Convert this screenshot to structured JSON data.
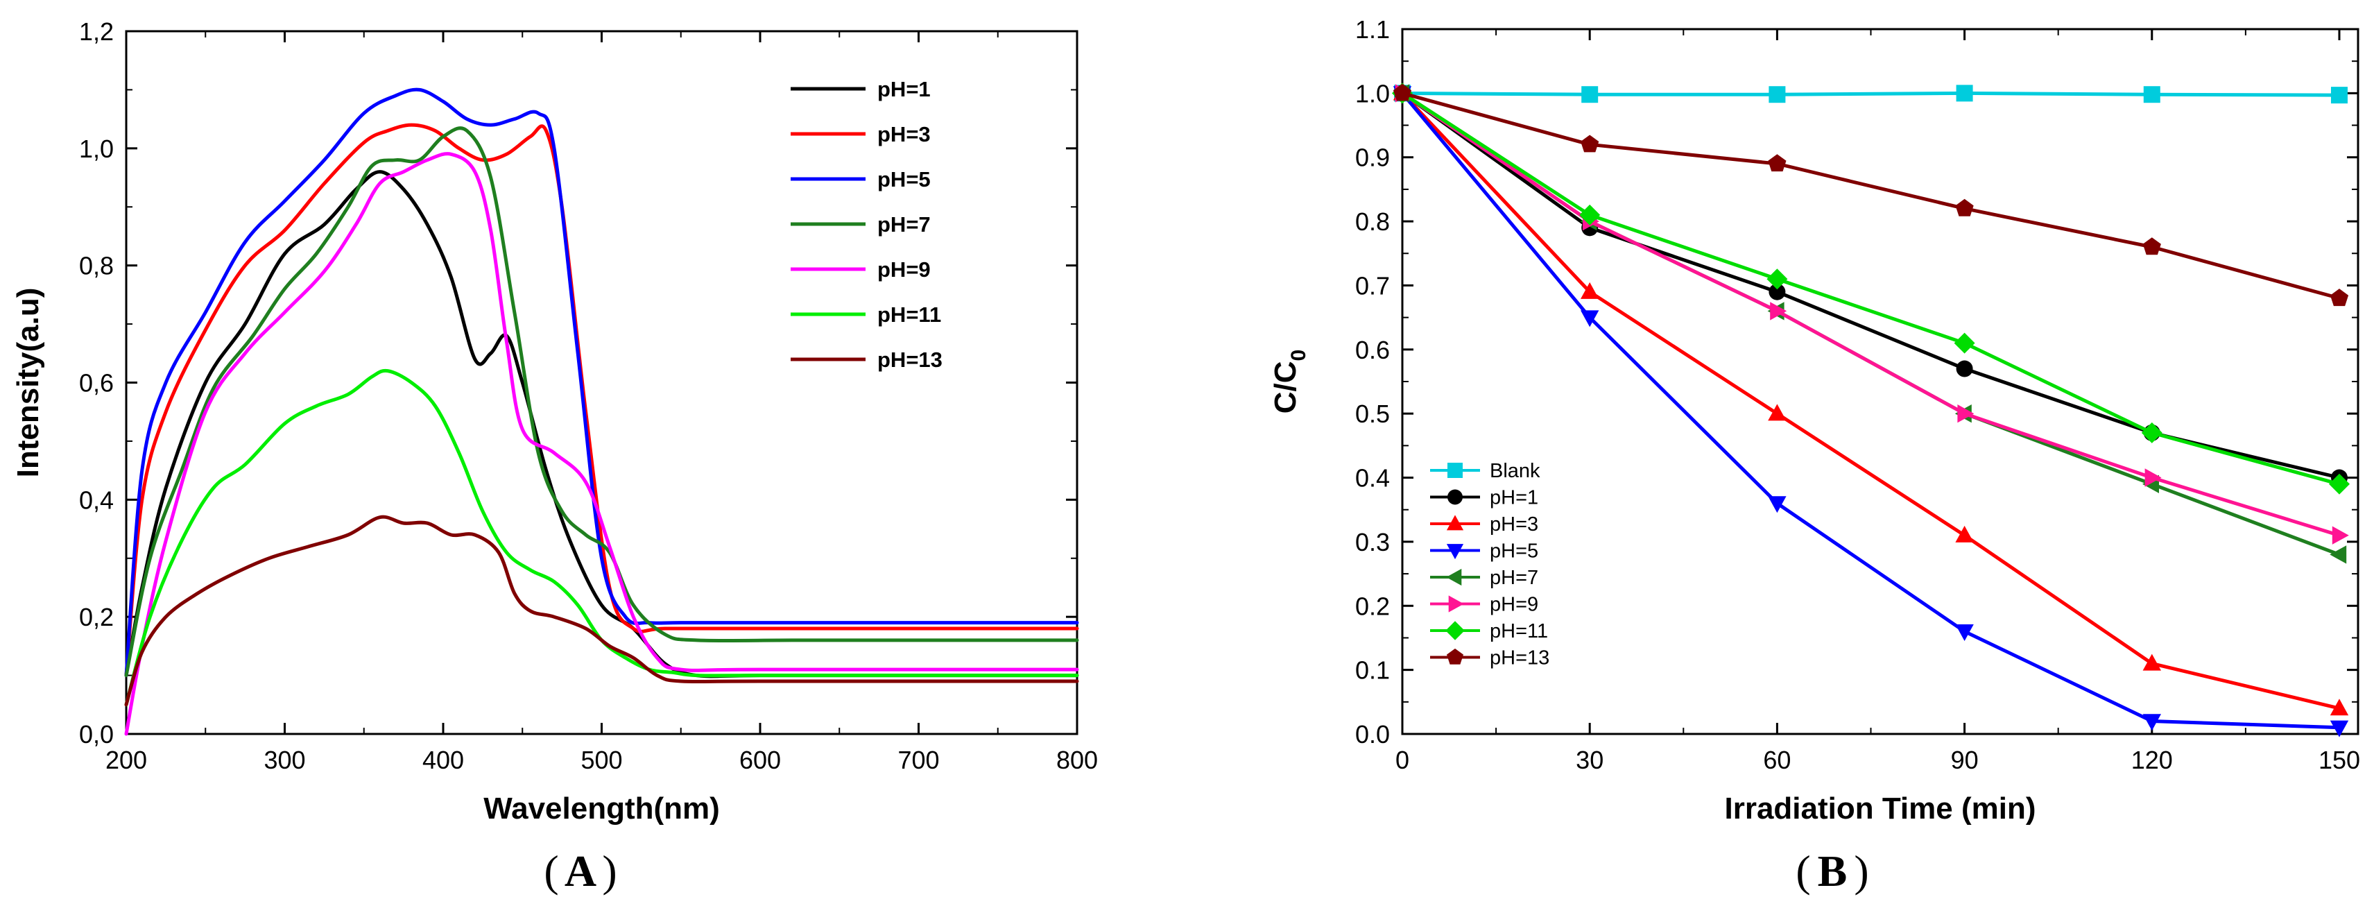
{
  "chart_data": [
    {
      "type": "line",
      "panel_label": "A",
      "xlabel": "Wavelength(nm)",
      "ylabel": "Intensity(a.u)",
      "xlim": [
        200,
        800
      ],
      "ylim": [
        0,
        1.2
      ],
      "xticks": [
        200,
        300,
        400,
        500,
        600,
        700,
        800
      ],
      "xtick_labels": [
        "200",
        "300",
        "400",
        "500",
        "600",
        "700",
        "800"
      ],
      "yticks": [
        0,
        0.2,
        0.4,
        0.6,
        0.8,
        1.0,
        1.2
      ],
      "ytick_labels": [
        "0,0",
        "0,2",
        "0,4",
        "0,6",
        "0,8",
        "1,0",
        "1,2"
      ],
      "legend_position": "top-right",
      "series": [
        {
          "name": "pH=1",
          "color": "#000000",
          "x": [
            200,
            210,
            225,
            250,
            275,
            300,
            325,
            345,
            360,
            375,
            390,
            405,
            420,
            430,
            440,
            450,
            465,
            480,
            500,
            520,
            540,
            560,
            600,
            700,
            800
          ],
          "y": [
            0.1,
            0.25,
            0.42,
            0.6,
            0.7,
            0.82,
            0.87,
            0.93,
            0.96,
            0.93,
            0.87,
            0.78,
            0.64,
            0.65,
            0.68,
            0.6,
            0.45,
            0.33,
            0.22,
            0.18,
            0.12,
            0.1,
            0.1,
            0.1,
            0.1
          ]
        },
        {
          "name": "pH=3",
          "color": "#ff0000",
          "x": [
            200,
            210,
            225,
            250,
            275,
            300,
            325,
            350,
            365,
            380,
            395,
            410,
            425,
            440,
            455,
            465,
            475,
            490,
            505,
            520,
            540,
            600,
            680,
            700,
            800
          ],
          "y": [
            0.1,
            0.4,
            0.55,
            0.69,
            0.8,
            0.86,
            0.94,
            1.01,
            1.03,
            1.04,
            1.03,
            1.0,
            0.98,
            0.99,
            1.02,
            1.03,
            0.9,
            0.55,
            0.25,
            0.18,
            0.18,
            0.18,
            0.18,
            0.18,
            0.18
          ]
        },
        {
          "name": "pH=5",
          "color": "#0000ff",
          "x": [
            200,
            210,
            225,
            250,
            275,
            300,
            325,
            350,
            370,
            385,
            400,
            415,
            430,
            445,
            460,
            470,
            485,
            500,
            515,
            530,
            550,
            600,
            700,
            800
          ],
          "y": [
            0.1,
            0.45,
            0.6,
            0.72,
            0.84,
            0.91,
            0.98,
            1.06,
            1.09,
            1.1,
            1.08,
            1.05,
            1.04,
            1.05,
            1.06,
            1.0,
            0.65,
            0.3,
            0.2,
            0.19,
            0.19,
            0.19,
            0.19,
            0.19
          ]
        },
        {
          "name": "pH=7",
          "color": "#1f7f1f",
          "x": [
            200,
            215,
            235,
            255,
            280,
            300,
            320,
            340,
            355,
            370,
            385,
            400,
            415,
            430,
            445,
            460,
            475,
            490,
            505,
            520,
            540,
            560,
            620,
            680,
            800
          ],
          "y": [
            0.1,
            0.3,
            0.45,
            0.59,
            0.68,
            0.76,
            0.82,
            0.9,
            0.97,
            0.98,
            0.98,
            1.02,
            1.03,
            0.95,
            0.72,
            0.48,
            0.38,
            0.34,
            0.31,
            0.22,
            0.17,
            0.16,
            0.16,
            0.16,
            0.16
          ]
        },
        {
          "name": "pH=9",
          "color": "#ff00ff",
          "x": [
            200,
            210,
            225,
            250,
            275,
            300,
            325,
            345,
            360,
            375,
            390,
            405,
            420,
            430,
            440,
            450,
            470,
            490,
            505,
            520,
            535,
            550,
            600,
            800
          ],
          "y": [
            0.0,
            0.15,
            0.33,
            0.55,
            0.65,
            0.72,
            0.79,
            0.87,
            0.94,
            0.96,
            0.98,
            0.99,
            0.96,
            0.86,
            0.67,
            0.52,
            0.48,
            0.43,
            0.32,
            0.2,
            0.13,
            0.11,
            0.11,
            0.11
          ]
        },
        {
          "name": "pH=11",
          "color": "#00ee00",
          "x": [
            200,
            215,
            235,
            255,
            275,
            300,
            320,
            340,
            355,
            365,
            380,
            395,
            410,
            425,
            440,
            455,
            470,
            485,
            500,
            515,
            530,
            545,
            560,
            600,
            800
          ],
          "y": [
            0.05,
            0.2,
            0.33,
            0.42,
            0.46,
            0.53,
            0.56,
            0.58,
            0.61,
            0.62,
            0.6,
            0.56,
            0.48,
            0.38,
            0.31,
            0.28,
            0.26,
            0.22,
            0.16,
            0.13,
            0.11,
            0.105,
            0.1,
            0.1,
            0.1
          ]
        },
        {
          "name": "pH=13",
          "color": "#800000",
          "x": [
            200,
            210,
            225,
            245,
            265,
            290,
            315,
            340,
            360,
            375,
            390,
            405,
            420,
            435,
            445,
            455,
            470,
            490,
            505,
            520,
            535,
            550,
            600,
            800
          ],
          "y": [
            0.05,
            0.14,
            0.2,
            0.24,
            0.27,
            0.3,
            0.32,
            0.34,
            0.37,
            0.36,
            0.36,
            0.34,
            0.34,
            0.31,
            0.24,
            0.21,
            0.2,
            0.18,
            0.15,
            0.13,
            0.1,
            0.09,
            0.09,
            0.09
          ]
        }
      ]
    },
    {
      "type": "line",
      "panel_label": "B",
      "xlabel": "Irradiation Time (min)",
      "ylabel": "C/C",
      "ylabel_subscript": "0",
      "xlim": [
        0,
        153
      ],
      "ylim": [
        0,
        1.1
      ],
      "xticks": [
        0,
        30,
        60,
        90,
        120,
        150
      ],
      "xtick_labels": [
        "0",
        "30",
        "60",
        "90",
        "120",
        "150"
      ],
      "yticks": [
        0,
        0.1,
        0.2,
        0.3,
        0.4,
        0.5,
        0.6,
        0.7,
        0.8,
        0.9,
        1.0,
        1.1
      ],
      "ytick_labels": [
        "0.0",
        "0.1",
        "0.2",
        "0.3",
        "0.4",
        "0.5",
        "0.6",
        "0.7",
        "0.8",
        "0.9",
        "1.0",
        "1.1"
      ],
      "legend_position": "bottom-left",
      "x": [
        0,
        30,
        60,
        90,
        120,
        150
      ],
      "series": [
        {
          "name": "Blank",
          "color": "#00ccdd",
          "marker": "square",
          "values": [
            1.0,
            0.998,
            0.998,
            1.0,
            0.998,
            0.997
          ]
        },
        {
          "name": "pH=1",
          "color": "#000000",
          "marker": "circle",
          "values": [
            1.0,
            0.79,
            0.69,
            0.57,
            0.47,
            0.4
          ]
        },
        {
          "name": "pH=3",
          "color": "#ff0000",
          "marker": "triangle-up",
          "values": [
            1.0,
            0.69,
            0.5,
            0.31,
            0.11,
            0.04
          ]
        },
        {
          "name": "pH=5",
          "color": "#0000ff",
          "marker": "triangle-down",
          "values": [
            1.0,
            0.65,
            0.36,
            0.16,
            0.02,
            0.01
          ]
        },
        {
          "name": "pH=7",
          "color": "#1f7f1f",
          "marker": "triangle-left",
          "values": [
            1.0,
            0.8,
            0.66,
            0.5,
            0.39,
            0.28
          ]
        },
        {
          "name": "pH=9",
          "color": "#ff1493",
          "marker": "triangle-right",
          "values": [
            1.0,
            0.8,
            0.66,
            0.5,
            0.4,
            0.31
          ]
        },
        {
          "name": "pH=11",
          "color": "#00dd00",
          "marker": "diamond",
          "values": [
            1.0,
            0.81,
            0.71,
            0.61,
            0.47,
            0.39
          ]
        },
        {
          "name": "pH=13",
          "color": "#800000",
          "marker": "pentagon",
          "values": [
            1.0,
            0.92,
            0.89,
            0.82,
            0.76,
            0.68
          ]
        }
      ]
    }
  ]
}
